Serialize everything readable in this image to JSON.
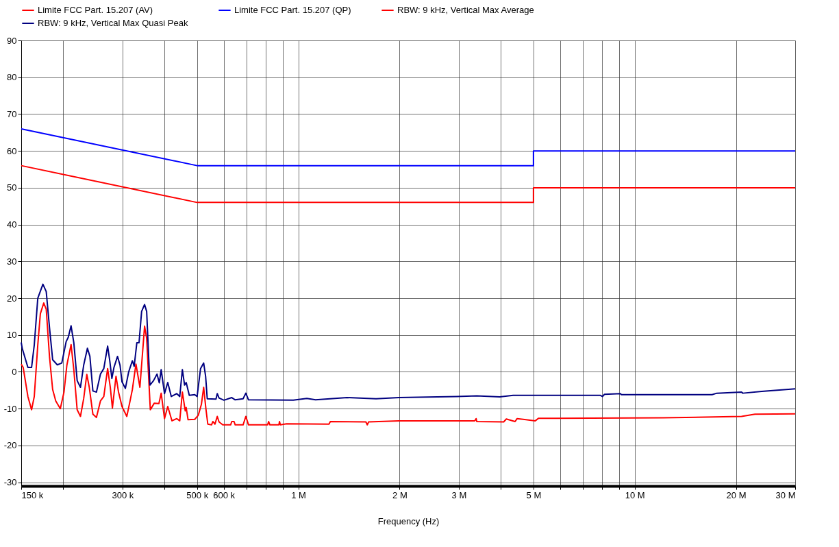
{
  "chart_data": {
    "type": "line",
    "xlabel": "Frequency (Hz)",
    "log": "x",
    "grid": true,
    "legend": "top",
    "line_style": "solid",
    "marker": "none",
    "xlim": [
      150000,
      30000000
    ],
    "xticks": [
      {
        "value": 150000,
        "label": "150 k"
      },
      {
        "value": 200000,
        "label": null
      },
      {
        "value": 300000,
        "label": "300 k"
      },
      {
        "value": 400000,
        "label": null
      },
      {
        "value": 500000,
        "label": "500 k"
      },
      {
        "value": 600000,
        "label": "600 k"
      },
      {
        "value": 700000,
        "label": null
      },
      {
        "value": 800000,
        "label": null
      },
      {
        "value": 900000,
        "label": null
      },
      {
        "value": 1000000,
        "label": "1 M"
      },
      {
        "value": 2000000,
        "label": "2 M"
      },
      {
        "value": 3000000,
        "label": "3 M"
      },
      {
        "value": 4000000,
        "label": null
      },
      {
        "value": 5000000,
        "label": "5 M"
      },
      {
        "value": 6000000,
        "label": null
      },
      {
        "value": 7000000,
        "label": null
      },
      {
        "value": 8000000,
        "label": null
      },
      {
        "value": 9000000,
        "label": null
      },
      {
        "value": 10000000,
        "label": "10 M"
      },
      {
        "value": 20000000,
        "label": "20 M"
      },
      {
        "value": 30000000,
        "label": "30 M"
      }
    ],
    "ylim": [
      -31,
      90
    ],
    "yticks": [
      -30,
      -20,
      -10,
      0,
      10,
      20,
      30,
      40,
      50,
      60,
      70,
      80,
      90
    ],
    "series": [
      {
        "name": "Limite FCC Part. 15.207 (AV)",
        "color": "#ff0000",
        "x": [
          150000,
          500000,
          5000000,
          5000000,
          30000000
        ],
        "values": [
          56,
          46,
          46,
          50,
          50
        ]
      },
      {
        "name": "Limite FCC Part. 15.207 (QP)",
        "color": "#0000ff",
        "x": [
          150000,
          500000,
          5000000,
          5000000,
          30000000
        ],
        "values": [
          66,
          56,
          56,
          60,
          60
        ]
      },
      {
        "name": "RBW: 9 kHz, Vertical Max Average",
        "color": "#ff0000",
        "x": [
          150000,
          152000,
          157000,
          161000,
          164000,
          168000,
          171000,
          175000,
          178000,
          182000,
          186000,
          190000,
          196000,
          201000,
          205000,
          211000,
          215000,
          220000,
          225000,
          230000,
          235000,
          239000,
          245000,
          251000,
          258000,
          264000,
          271000,
          276000,
          280000,
          287000,
          292000,
          299000,
          309000,
          316000,
          321000,
          329000,
          338000,
          349000,
          354000,
          363000,
          373000,
          385000,
          391000,
          400000,
          409000,
          421000,
          435000,
          444000,
          452000,
          461000,
          464000,
          470000,
          492000,
          504000,
          515000,
          523000,
          531000,
          538000,
          552000,
          557000,
          565000,
          574000,
          581000,
          596000,
          629000,
          634000,
          644000,
          649000,
          685000,
          698000,
          711000,
          810000,
          816000,
          823000,
          875000,
          879000,
          884000,
          923000,
          1233000,
          1245000,
          1588000,
          1603000,
          1618000,
          1990000,
          3346000,
          3377000,
          3393000,
          4079000,
          4153000,
          4410000,
          4472000,
          5062000,
          5181000,
          5811000,
          12130000,
          20780000,
          22780000,
          30000000
        ],
        "values": [
          2.1,
          1.2,
          -6.7,
          -10.3,
          -6.7,
          7.3,
          15.8,
          18.7,
          17,
          4.2,
          -4.8,
          -7.9,
          -10,
          -5.5,
          1.8,
          7.4,
          0.6,
          -10.3,
          -12.1,
          -7.3,
          -0.7,
          -4.2,
          -11.5,
          -12.4,
          -7.9,
          -6.7,
          0.9,
          -4.2,
          -9.8,
          -1.2,
          -5.5,
          -9.4,
          -12.1,
          -7.9,
          -4.8,
          2.1,
          -4.2,
          12.4,
          9.1,
          -10.3,
          -8.5,
          -8.6,
          -5.8,
          -12.7,
          -9.4,
          -13.3,
          -12.7,
          -13.3,
          -5.5,
          -10.6,
          -9.7,
          -13,
          -12.9,
          -11.8,
          -8.8,
          -4.2,
          -10,
          -14.2,
          -14.4,
          -13.5,
          -14.2,
          -12.1,
          -13.6,
          -14.4,
          -14.4,
          -13.5,
          -13.5,
          -14.4,
          -14.4,
          -12.1,
          -14.4,
          -14.4,
          -13.5,
          -14.4,
          -14.4,
          -13.5,
          -14.4,
          -14.1,
          -14.2,
          -13.5,
          -13.6,
          -14.4,
          -13.6,
          -13.3,
          -13.3,
          -12.7,
          -13.5,
          -13.6,
          -12.8,
          -13.5,
          -12.7,
          -13.3,
          -12.6,
          -12.6,
          -12.5,
          -12.1,
          -11.5,
          -11.4
        ]
      },
      {
        "name": "RBW: 9 kHz, Vertical Max Quasi Peak",
        "color": "#000080",
        "x": [
          150000,
          151000,
          157000,
          161000,
          164000,
          168000,
          174000,
          178000,
          182000,
          186000,
          192000,
          198000,
          204000,
          207000,
          211000,
          215000,
          220000,
          225000,
          230000,
          236000,
          240000,
          245000,
          251000,
          258000,
          264000,
          271000,
          275000,
          279000,
          283000,
          290000,
          295000,
          299000,
          306000,
          313000,
          321000,
          325000,
          331000,
          336000,
          342000,
          349000,
          354000,
          362000,
          371000,
          380000,
          386000,
          391000,
          400000,
          409000,
          419000,
          435000,
          444000,
          452000,
          459000,
          464000,
          474000,
          492000,
          500000,
          512000,
          523000,
          530000,
          536000,
          569000,
          574000,
          581000,
          601000,
          634000,
          649000,
          685000,
          698000,
          711000,
          966000,
          1060000,
          1125000,
          1396000,
          1702000,
          1990000,
          2955000,
          3393000,
          3968000,
          4350000,
          5811000,
          7910000,
          8019000,
          8131000,
          9080000,
          9122000,
          16980000,
          17540000,
          20780000,
          20970000,
          23850000,
          30000000
        ],
        "values": [
          8,
          6.4,
          1.2,
          1.2,
          7.3,
          20,
          23.8,
          21.8,
          12.1,
          3.3,
          1.9,
          2.4,
          8.2,
          9.4,
          12.5,
          7.9,
          -2.4,
          -4.2,
          1.8,
          6.4,
          4.2,
          -5.2,
          -5.5,
          -0.6,
          0.9,
          7,
          3,
          -1.8,
          1.2,
          4.2,
          1.8,
          -2.7,
          -4.5,
          0,
          3,
          1.5,
          7.9,
          7.9,
          16.4,
          18.3,
          16.4,
          -3.6,
          -2.4,
          -0.6,
          -3,
          0.6,
          -5.9,
          -2.9,
          -6.7,
          -5.9,
          -6.7,
          0.6,
          -3.6,
          -2.9,
          -6.4,
          -6.2,
          -6.7,
          0.9,
          2.4,
          -1.2,
          -7.3,
          -7.4,
          -5.9,
          -7.1,
          -7.7,
          -7,
          -7.6,
          -7.3,
          -5.8,
          -7.6,
          -7.7,
          -7.2,
          -7.6,
          -7,
          -7.3,
          -7,
          -6.7,
          -6.5,
          -6.8,
          -6.4,
          -6.4,
          -6.4,
          -6.7,
          -6.1,
          -5.9,
          -6.2,
          -6.2,
          -5.8,
          -5.5,
          -5.8,
          -5.3,
          -4.6
        ]
      }
    ]
  }
}
